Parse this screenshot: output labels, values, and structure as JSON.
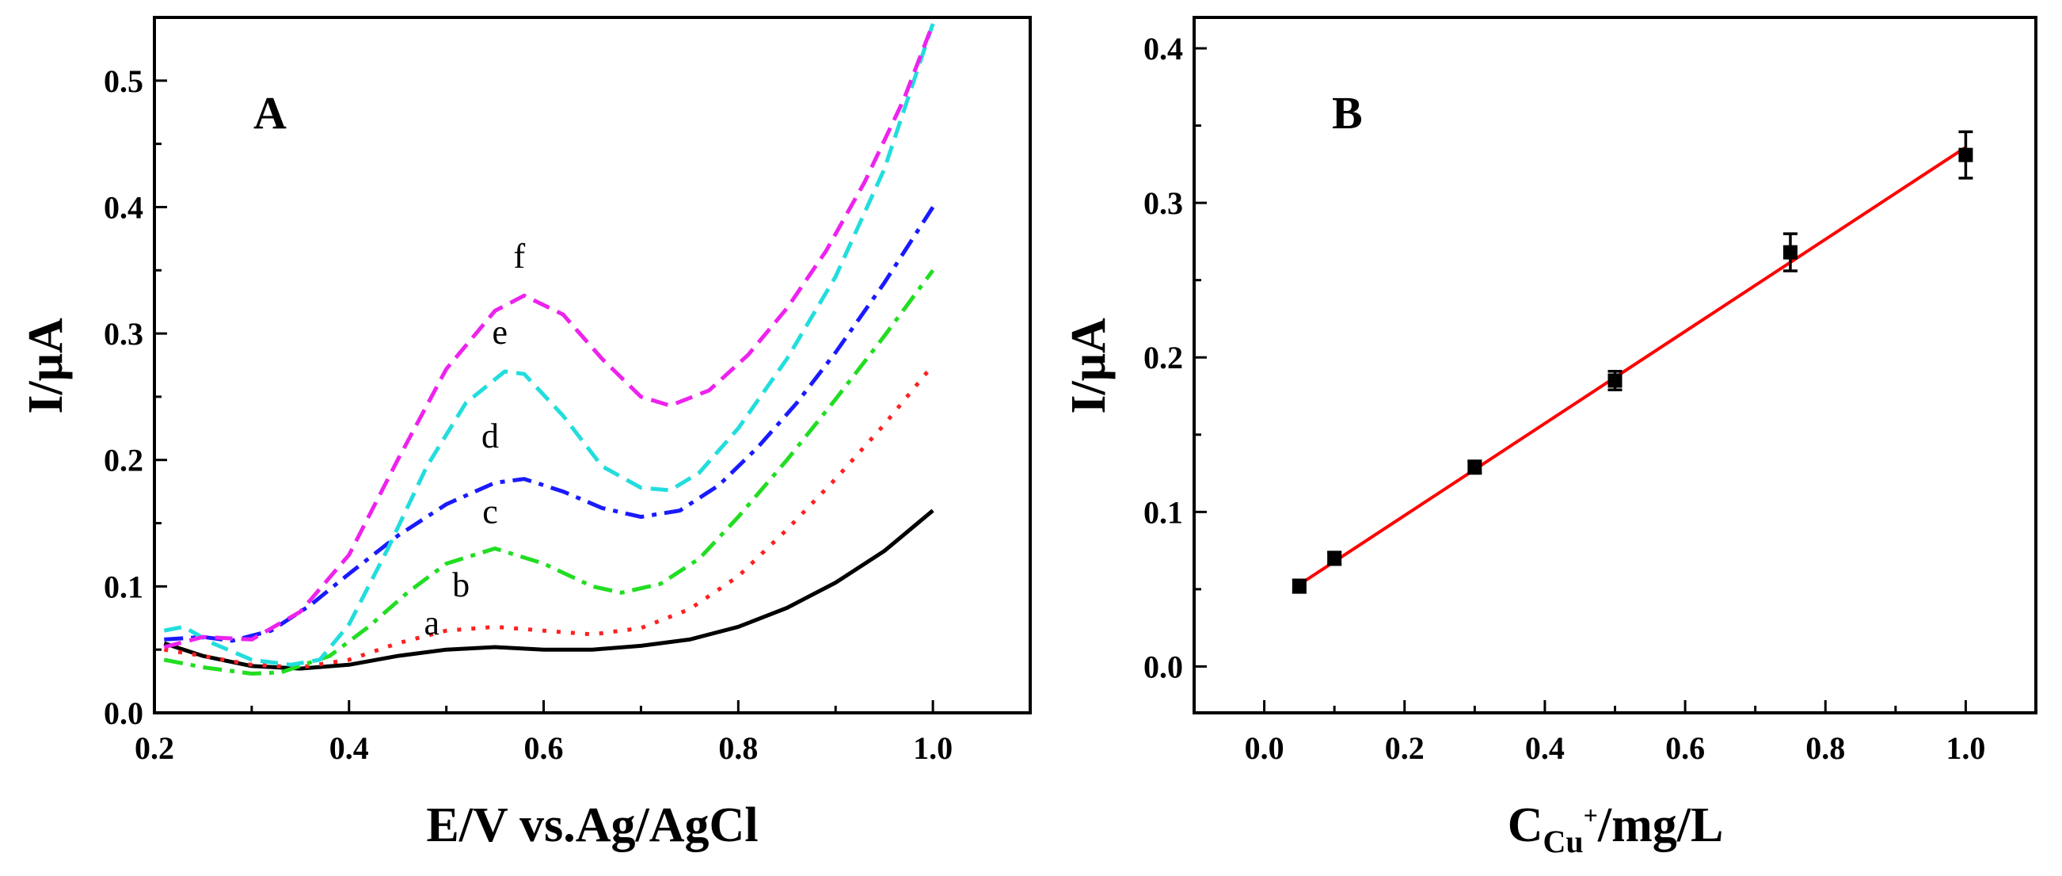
{
  "chart_data": [
    {
      "type": "line",
      "panel_label": "A",
      "xlabel": "E/V vs.Ag/AgCl",
      "ylabel": "I/μA",
      "xlim": [
        0.2,
        1.1
      ],
      "ylim": [
        0.0,
        0.55
      ],
      "x_ticks": [
        "0.2",
        "0.4",
        "0.6",
        "0.8",
        "1.0"
      ],
      "y_ticks": [
        "0.0",
        "0.1",
        "0.2",
        "0.3",
        "0.4",
        "0.5"
      ],
      "grid": false,
      "series": [
        {
          "name": "a",
          "color": "#000000",
          "dash": "solid",
          "x": [
            0.21,
            0.25,
            0.3,
            0.35,
            0.4,
            0.45,
            0.5,
            0.55,
            0.6,
            0.65,
            0.7,
            0.75,
            0.8,
            0.85,
            0.9,
            0.95,
            1.0
          ],
          "y": [
            0.055,
            0.045,
            0.037,
            0.035,
            0.038,
            0.045,
            0.05,
            0.052,
            0.05,
            0.05,
            0.053,
            0.058,
            0.068,
            0.083,
            0.103,
            0.128,
            0.16
          ]
        },
        {
          "name": "b",
          "color": "#ff2020",
          "dash": "dot",
          "x": [
            0.21,
            0.25,
            0.3,
            0.35,
            0.4,
            0.45,
            0.5,
            0.55,
            0.6,
            0.65,
            0.7,
            0.75,
            0.8,
            0.85,
            0.9,
            0.95,
            1.0
          ],
          "y": [
            0.05,
            0.045,
            0.038,
            0.036,
            0.042,
            0.055,
            0.065,
            0.068,
            0.065,
            0.062,
            0.067,
            0.082,
            0.108,
            0.145,
            0.185,
            0.228,
            0.275
          ]
        },
        {
          "name": "c",
          "color": "#22dd22",
          "dash": "dashdot",
          "x": [
            0.21,
            0.25,
            0.3,
            0.33,
            0.38,
            0.42,
            0.46,
            0.5,
            0.55,
            0.6,
            0.65,
            0.68,
            0.72,
            0.76,
            0.8,
            0.85,
            0.9,
            0.95,
            1.0
          ],
          "y": [
            0.042,
            0.036,
            0.031,
            0.032,
            0.045,
            0.068,
            0.095,
            0.118,
            0.13,
            0.118,
            0.1,
            0.095,
            0.102,
            0.122,
            0.155,
            0.2,
            0.248,
            0.298,
            0.35
          ]
        },
        {
          "name": "d",
          "color": "#1a1aff",
          "dash": "dashdot",
          "x": [
            0.21,
            0.25,
            0.28,
            0.32,
            0.36,
            0.4,
            0.45,
            0.5,
            0.55,
            0.58,
            0.62,
            0.66,
            0.7,
            0.74,
            0.78,
            0.82,
            0.86,
            0.9,
            0.95,
            1.0
          ],
          "y": [
            0.058,
            0.06,
            0.057,
            0.065,
            0.085,
            0.11,
            0.14,
            0.165,
            0.182,
            0.185,
            0.175,
            0.162,
            0.155,
            0.16,
            0.18,
            0.21,
            0.245,
            0.285,
            0.34,
            0.4
          ]
        },
        {
          "name": "e",
          "color": "#22dddd",
          "dash": "dash",
          "x": [
            0.21,
            0.23,
            0.26,
            0.3,
            0.34,
            0.37,
            0.4,
            0.44,
            0.48,
            0.52,
            0.56,
            0.58,
            0.62,
            0.66,
            0.7,
            0.73,
            0.76,
            0.8,
            0.85,
            0.9,
            0.95,
            1.0
          ],
          "y": [
            0.065,
            0.068,
            0.055,
            0.042,
            0.038,
            0.042,
            0.07,
            0.13,
            0.195,
            0.245,
            0.27,
            0.268,
            0.235,
            0.195,
            0.178,
            0.176,
            0.19,
            0.225,
            0.28,
            0.345,
            0.43,
            0.545
          ]
        },
        {
          "name": "f",
          "color": "#ee22ee",
          "dash": "dash",
          "x": [
            0.21,
            0.25,
            0.3,
            0.35,
            0.4,
            0.45,
            0.5,
            0.55,
            0.58,
            0.62,
            0.66,
            0.7,
            0.73,
            0.77,
            0.81,
            0.85,
            0.89,
            0.93,
            0.97,
            1.0
          ],
          "y": [
            0.052,
            0.06,
            0.058,
            0.08,
            0.125,
            0.2,
            0.272,
            0.318,
            0.33,
            0.315,
            0.28,
            0.25,
            0.243,
            0.255,
            0.283,
            0.32,
            0.365,
            0.42,
            0.485,
            0.545
          ]
        }
      ]
    },
    {
      "type": "scatter",
      "panel_label": "B",
      "xlabel_main": "C",
      "xlabel_sub": "Cu",
      "xlabel_sup": "+",
      "xlabel_tail": "/mg/L",
      "ylabel": "I/μA",
      "xlim": [
        -0.1,
        1.1
      ],
      "ylim": [
        -0.03,
        0.42
      ],
      "x_ticks": [
        "0.0",
        "0.2",
        "0.4",
        "0.6",
        "0.8",
        "1.0"
      ],
      "y_ticks": [
        "0.0",
        "0.1",
        "0.2",
        "0.3",
        "0.4"
      ],
      "grid": false,
      "points": {
        "x": [
          0.05,
          0.1,
          0.3,
          0.5,
          0.75,
          1.0
        ],
        "y": [
          0.052,
          0.07,
          0.129,
          0.185,
          0.268,
          0.331
        ],
        "err": [
          0.004,
          0.004,
          0.004,
          0.006,
          0.012,
          0.015
        ]
      },
      "fit": {
        "x": [
          0.05,
          1.0
        ],
        "y": [
          0.053,
          0.336
        ],
        "color": "#ff0000"
      }
    }
  ]
}
